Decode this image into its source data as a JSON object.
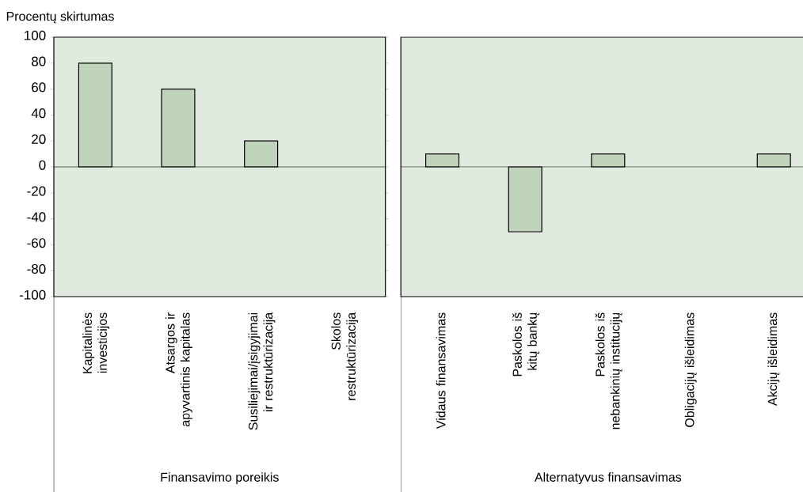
{
  "chart_data": [
    {
      "type": "bar",
      "ylabel": "Procentų skirtumas",
      "categories": [
        "Kapitalinės investicijos",
        "Atsargos ir apyvartinis kapitalas",
        "Susiliejimai/įsigyjimai ir restruktūrizacija",
        "Skolos restruktūrizacija"
      ],
      "values": [
        80,
        60,
        20,
        null
      ],
      "color": "#bfd4bb",
      "ylim": [
        -100,
        100
      ],
      "yticks": [
        -100,
        -80,
        -60,
        -40,
        -20,
        0,
        20,
        40,
        60,
        80,
        100
      ],
      "ref_lines": [
        {
          "axis": "y",
          "value": 0
        }
      ],
      "annotations": [
        "Finansavimo poreikis"
      ],
      "grid": false
    },
    {
      "type": "bar",
      "categories": [
        "Vidaus finansavimas",
        "Paskolos iš kitų bankų",
        "Paskolos iš nebankinių institucijų",
        "Obligacijų išleidimas",
        "Akcijų išleidimas"
      ],
      "values": [
        10,
        -50,
        10,
        null,
        10
      ],
      "color": "#bfd4bb",
      "ylim": [
        -100,
        100
      ],
      "yticks": [
        -100,
        -80,
        -60,
        -40,
        -20,
        0,
        20,
        40,
        60,
        80,
        100
      ],
      "ref_lines": [
        {
          "axis": "y",
          "value": 0
        }
      ],
      "annotations": [
        "Alternatyvus finansavimas"
      ],
      "tick_labels": "x",
      "grid": false
    }
  ]
}
